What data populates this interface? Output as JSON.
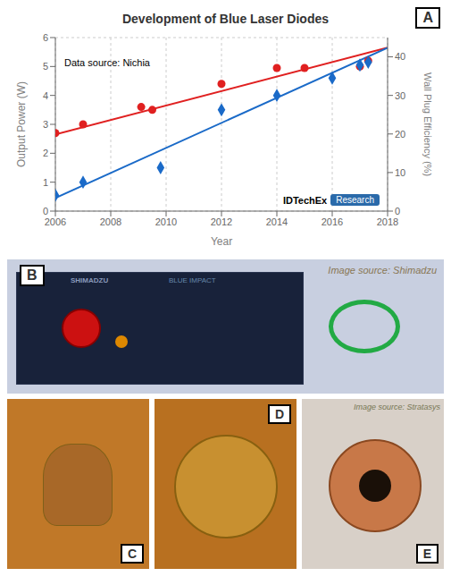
{
  "chart_data": {
    "type": "scatter",
    "title": "Development of Blue Laser Diodes",
    "xlabel": "Year",
    "ylabel": "Output Power (W)",
    "y2label": "Wall Plug Efficiency (%)",
    "xlim": [
      2006,
      2018
    ],
    "xticks": [
      2006,
      2008,
      2010,
      2012,
      2014,
      2016,
      2018
    ],
    "ylim": [
      0,
      6
    ],
    "yticks": [
      0,
      1,
      2,
      3,
      4,
      5,
      6
    ],
    "y2lim": [
      0,
      45
    ],
    "y2ticks": [
      0,
      10,
      20,
      30,
      40
    ],
    "grid": true,
    "series": [
      {
        "type": "scatter",
        "color": "#e02020",
        "marker": "circle",
        "x": [
          2006,
          2007,
          2009.1,
          2009.5,
          2012,
          2014,
          2015,
          2017,
          2017.3
        ],
        "values": [
          2.7,
          3.0,
          3.6,
          3.5,
          4.4,
          4.95,
          4.95,
          5.0,
          5.2
        ]
      },
      {
        "type": "line",
        "color": "#e02020",
        "x": [
          2006,
          2018
        ],
        "values": [
          2.65,
          5.65
        ]
      },
      {
        "type": "scatter",
        "color": "#1a6ac8",
        "marker": "diamond",
        "x": [
          2006,
          2007,
          2009.8,
          2012,
          2014,
          2016,
          2017,
          2017.3
        ],
        "values": [
          0.55,
          1.0,
          1.5,
          3.5,
          4.0,
          4.6,
          5.05,
          5.15
        ]
      },
      {
        "type": "line",
        "color": "#1a6ac8",
        "x": [
          2006,
          2018
        ],
        "values": [
          0.45,
          5.65
        ]
      }
    ],
    "annotations": [
      "Data source: Nichia",
      "IDTechEx",
      "Research",
      "A",
      "B",
      "SHIMADZU",
      "BLUE IMPACT",
      "Image source: Shimadzu",
      "C",
      "D",
      "E",
      "Image source: Stratasys"
    ]
  }
}
